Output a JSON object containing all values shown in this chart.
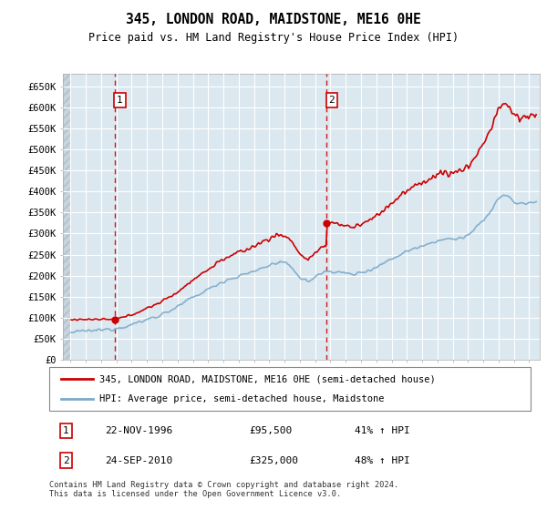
{
  "title": "345, LONDON ROAD, MAIDSTONE, ME16 0HE",
  "subtitle": "Price paid vs. HM Land Registry's House Price Index (HPI)",
  "legend_label_red": "345, LONDON ROAD, MAIDSTONE, ME16 0HE (semi-detached house)",
  "legend_label_blue": "HPI: Average price, semi-detached house, Maidstone",
  "annotation1_label": "1",
  "annotation1_date": "22-NOV-1996",
  "annotation1_price": "£95,500",
  "annotation1_hpi": "41% ↑ HPI",
  "annotation2_label": "2",
  "annotation2_date": "24-SEP-2010",
  "annotation2_price": "£325,000",
  "annotation2_hpi": "48% ↑ HPI",
  "footer": "Contains HM Land Registry data © Crown copyright and database right 2024.\nThis data is licensed under the Open Government Licence v3.0.",
  "ylim": [
    0,
    680000
  ],
  "yticks": [
    0,
    50000,
    100000,
    150000,
    200000,
    250000,
    300000,
    350000,
    400000,
    450000,
    500000,
    550000,
    600000,
    650000
  ],
  "ytick_labels": [
    "£0",
    "£50K",
    "£100K",
    "£150K",
    "£200K",
    "£250K",
    "£300K",
    "£350K",
    "£400K",
    "£450K",
    "£500K",
    "£550K",
    "£600K",
    "£650K"
  ],
  "red_color": "#cc0000",
  "blue_color": "#7aaaca",
  "bg_color": "#dce8f0",
  "grid_color": "#c8d8e4",
  "hatch_color": "#c0ccd8",
  "marker1_year": 1996.88,
  "marker1_value": 95500,
  "marker2_year": 2010.72,
  "marker2_value": 325000,
  "vline1_year": 1996.88,
  "vline2_year": 2010.72,
  "xmin": 1993.5,
  "xmax": 2024.7
}
